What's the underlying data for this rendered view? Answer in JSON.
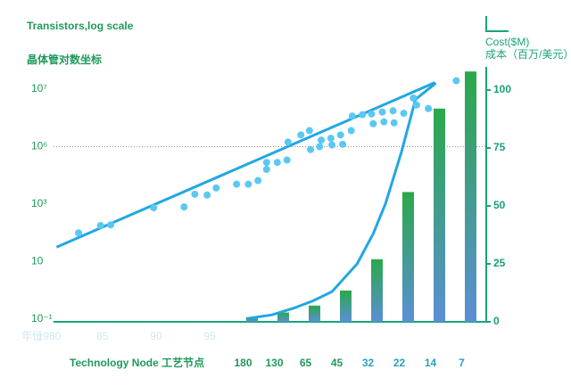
{
  "chart_data": {
    "type": "combo",
    "title": "Transistors,log scale",
    "subtitle": "晶体管对数坐标",
    "y2_label": "Cost($M)",
    "y2_label_2": "成本（百万/美元）",
    "x_label": "年份",
    "xlim": [
      1980,
      2020.8
    ],
    "xticks": [
      1980,
      {
        "value": 1985,
        "label": "85"
      },
      {
        "value": 1990,
        "label": "90"
      },
      {
        "value": 1995,
        "label": "95"
      }
    ],
    "log_scale": true,
    "ylim": [
      0.1,
      24000000
    ],
    "yticks": [
      {
        "value": 0.1,
        "label": "10⁻¹"
      },
      10,
      {
        "value": 1000,
        "label": "10³"
      },
      {
        "value": 1000000,
        "label": "10⁶"
      },
      {
        "value": 10000000,
        "label": "10⁷"
      }
    ],
    "reference_line": 1000000,
    "y2lim": [
      0,
      110
    ],
    "y2ticks": [
      0,
      25,
      50,
      75,
      100
    ],
    "points": {
      "color": "#5bc8f2",
      "x": [
        1982.75,
        1984.8,
        1985.75,
        1989.75,
        1992.6,
        1993.6,
        1994.75,
        1995.6,
        1997.5,
        1998.6,
        1999.5,
        2000.3,
        2000.3,
        2001.3,
        2002.2,
        2002.3,
        2003.5,
        2004.3,
        2004.4,
        2005.25,
        2005.4,
        2006.3,
        2006.4,
        2007.2,
        2007.4,
        2008.2,
        2008.3,
        2009.25,
        2010.1,
        2010.25,
        2011.1,
        2011.25,
        2012.1,
        2012.2,
        2013.1,
        2014,
        2014.3,
        2015.4,
        2018
      ],
      "values": [
        100,
        180,
        190,
        750,
        800,
        3300,
        3000,
        7000,
        11000,
        11000,
        17000,
        150000,
        65000,
        150000,
        200000,
        1200000,
        1600000,
        1900000,
        700000,
        1000000,
        1300000,
        1400000,
        1070000,
        1600000,
        1100000,
        1900000,
        3400000,
        3600000,
        3700000,
        2500000,
        4000000,
        2700000,
        4200000,
        2600000,
        3800000,
        7000000,
        5300000,
        4600000,
        14000000
      ]
    },
    "trend": {
      "color": "#22a7e3",
      "x": [
        1980.7,
        2016
      ],
      "values": [
        32,
        13000000
      ]
    },
    "cost_line": {
      "color": "#22a7e3",
      "axis": "y2",
      "x": [
        1998.6,
        2000.8,
        2002.9,
        2004.6,
        2006.4,
        2008.75,
        2010.25,
        2011.4,
        2012.9,
        2014.2,
        2016.1
      ],
      "values": [
        1.5,
        3,
        6,
        9,
        13,
        25,
        38,
        51,
        73.5,
        96,
        103
      ]
    },
    "bars": {
      "axis": "y2",
      "x_label": "Technology Node 工艺节点",
      "categories": [
        "180",
        "130",
        "65",
        "45",
        "32",
        "22",
        "14",
        "7"
      ],
      "values": [
        2,
        4,
        7,
        13.5,
        27,
        56,
        92,
        108
      ],
      "color_top": "#2aa84a",
      "color_bottom": "#5b8fd6"
    }
  }
}
